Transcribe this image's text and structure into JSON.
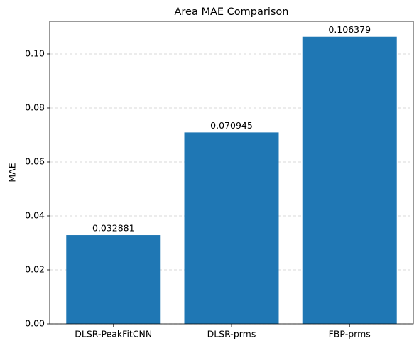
{
  "chart_data": {
    "type": "bar",
    "title": "Area MAE Comparison",
    "y_label": "MAE",
    "categories": [
      "DLSR-PeakFitCNN",
      "DLSR-prms",
      "FBP-prms"
    ],
    "values": [
      0.032881,
      0.070945,
      0.106379
    ],
    "color": "#1f77b4",
    "ylim": [
      0,
      0.1121
    ],
    "yticks": [
      {
        "value": 0,
        "label": "0.00"
      },
      {
        "value": 0.02,
        "label": "0.02"
      },
      {
        "value": 0.04,
        "label": "0.04"
      },
      {
        "value": 0.06,
        "label": "0.06"
      },
      {
        "value": 0.08,
        "label": "0.08"
      },
      {
        "value": 0.1,
        "label": "0.10"
      }
    ],
    "grid": true
  }
}
